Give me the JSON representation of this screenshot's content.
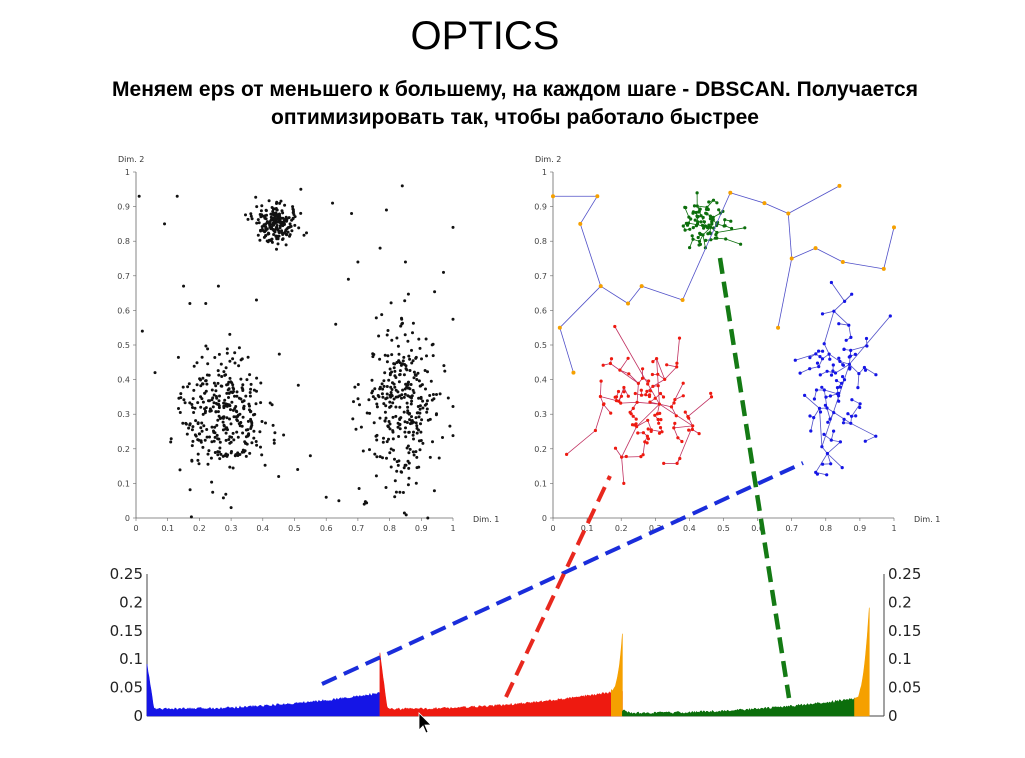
{
  "slide": {
    "title": "OPTICS",
    "subtitle_line1": "Меняем eps от меньшего к большему, на каждом шаге - DBSCAN. Получается",
    "subtitle_line2": "оптимизировать так, чтобы работало быстрее"
  },
  "colors": {
    "blue": "#1515e6",
    "red": "#ee1a10",
    "green": "#0c6e0c",
    "orange": "#f5a000",
    "tree_edge": "#5050c8",
    "dashed_blue": "#1a2ddb",
    "dashed_red": "#e8281e",
    "dashed_green": "#147a14"
  },
  "chart_data": [
    {
      "type": "scatter",
      "xlabel": "Dim. 1",
      "ylabel": "Dim. 2",
      "xlim": [
        0,
        1
      ],
      "ylim": [
        0,
        1
      ],
      "xticks": [
        "0",
        "0.1",
        "0.2",
        "0.3",
        "0.4",
        "0.5",
        "0.6",
        "0.7",
        "0.8",
        "0.9",
        "1"
      ],
      "yticks": [
        "0",
        "0.1",
        "0.2",
        "0.3",
        "0.4",
        "0.5",
        "0.6",
        "0.7",
        "0.8",
        "0.9",
        "1"
      ],
      "clusters": [
        {
          "center": [
            0.44,
            0.85
          ],
          "spread": [
            0.035,
            0.025
          ],
          "count": 200
        },
        {
          "center": [
            0.28,
            0.3
          ],
          "spread": [
            0.07,
            0.09
          ],
          "count": 340
        },
        {
          "center": [
            0.84,
            0.33
          ],
          "spread": [
            0.06,
            0.12
          ],
          "count": 330
        }
      ],
      "noise_points": [
        [
          0.01,
          0.93
        ],
        [
          0.09,
          0.85
        ],
        [
          0.13,
          0.93
        ],
        [
          0.15,
          0.67
        ],
        [
          0.17,
          0.62
        ],
        [
          0.02,
          0.54
        ],
        [
          0.06,
          0.42
        ],
        [
          0.22,
          0.62
        ],
        [
          0.26,
          0.67
        ],
        [
          0.38,
          0.63
        ],
        [
          0.52,
          0.95
        ],
        [
          0.62,
          0.91
        ],
        [
          0.68,
          0.88
        ],
        [
          0.67,
          0.69
        ],
        [
          0.7,
          0.74
        ],
        [
          0.77,
          0.78
        ],
        [
          0.79,
          0.89
        ],
        [
          0.84,
          0.96
        ],
        [
          0.85,
          0.74
        ],
        [
          0.97,
          0.71
        ],
        [
          1.0,
          0.84
        ],
        [
          0.63,
          0.56
        ],
        [
          0.55,
          0.18
        ],
        [
          0.6,
          0.06
        ],
        [
          0.64,
          0.05
        ],
        [
          0.72,
          0.04
        ],
        [
          0.45,
          0.12
        ],
        [
          0.51,
          0.14
        ],
        [
          0.35,
          0.4
        ],
        [
          0.3,
          0.03
        ]
      ],
      "grid": false
    },
    {
      "type": "scatter",
      "subtype": "reachability-tree",
      "xlabel": "Dim. 1",
      "ylabel": "Dim. 2",
      "xlim": [
        0,
        1
      ],
      "ylim": [
        0,
        1
      ],
      "xticks": [
        "0",
        "0.1",
        "0.2",
        "0.3",
        "0.4",
        "0.5",
        "0.6",
        "0.7",
        "0.8",
        "0.9",
        "1"
      ],
      "yticks": [
        "0",
        "0.1",
        "0.2",
        "0.3",
        "0.4",
        "0.5",
        "0.6",
        "0.7",
        "0.8",
        "0.9",
        "1"
      ],
      "clusters": [
        {
          "name_color": "green",
          "center": [
            0.44,
            0.85
          ],
          "spread": [
            0.035,
            0.03
          ],
          "count": 90
        },
        {
          "name_color": "red",
          "center": [
            0.28,
            0.32
          ],
          "spread": [
            0.08,
            0.08
          ],
          "count": 110
        },
        {
          "name_color": "blue",
          "center": [
            0.84,
            0.36
          ],
          "spread": [
            0.05,
            0.12
          ],
          "count": 100
        }
      ],
      "noise_points": [
        [
          0.0,
          0.93
        ],
        [
          0.13,
          0.93
        ],
        [
          0.08,
          0.85
        ],
        [
          0.14,
          0.67
        ],
        [
          0.22,
          0.62
        ],
        [
          0.26,
          0.67
        ],
        [
          0.38,
          0.63
        ],
        [
          0.52,
          0.94
        ],
        [
          0.62,
          0.91
        ],
        [
          0.69,
          0.88
        ],
        [
          0.7,
          0.75
        ],
        [
          0.77,
          0.78
        ],
        [
          0.84,
          0.96
        ],
        [
          0.85,
          0.74
        ],
        [
          0.97,
          0.72
        ],
        [
          1.0,
          0.84
        ],
        [
          0.66,
          0.55
        ],
        [
          0.02,
          0.55
        ],
        [
          0.06,
          0.42
        ]
      ],
      "grid": false
    },
    {
      "type": "area",
      "subtype": "reachability-plot",
      "yticks_left": [
        "0.25",
        "0.2",
        "0.15",
        "0.1",
        "0.05",
        "0"
      ],
      "yticks_right": [
        "0.25",
        "0.2",
        "0.15",
        "0.1",
        "0.05",
        "0"
      ],
      "ylim": [
        0,
        0.25
      ],
      "segments": [
        {
          "color": "blue",
          "from": 0,
          "to": 0.316,
          "start_value": 0.09,
          "base_value": 0.012,
          "end_value": 0.04
        },
        {
          "color": "red",
          "from": 0.316,
          "to": 0.645,
          "start_value": 0.11,
          "base_value": 0.012,
          "end_value": 0.045
        },
        {
          "color": "orange",
          "from": 0.63,
          "to": 0.645,
          "start_value": 0.045,
          "end_value": 0.145
        },
        {
          "color": "green",
          "from": 0.645,
          "to": 0.96,
          "start_value": 0.01,
          "base_value": 0.005,
          "end_value": 0.03
        },
        {
          "color": "orange",
          "from": 0.96,
          "to": 0.98,
          "start_value": 0.03,
          "end_value": 0.19
        }
      ],
      "grid": false
    }
  ]
}
